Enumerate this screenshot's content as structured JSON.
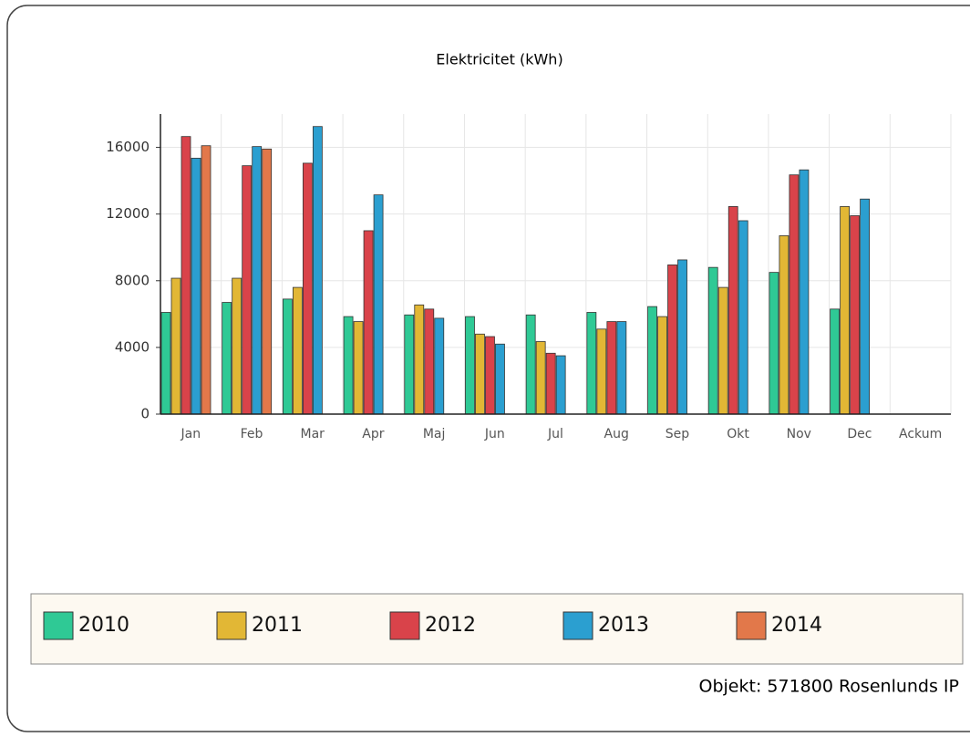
{
  "chart_data": {
    "type": "bar",
    "title": "Elektricitet (kWh)",
    "categories": [
      "Jan",
      "Feb",
      "Mar",
      "Apr",
      "Maj",
      "Jun",
      "Jul",
      "Aug",
      "Sep",
      "Okt",
      "Nov",
      "Dec",
      "Ackum"
    ],
    "series": [
      {
        "name": "2010",
        "color": "#2fc995",
        "values": [
          6100,
          6700,
          6900,
          5850,
          5950,
          5850,
          5950,
          6100,
          6450,
          8800,
          8500,
          6300,
          null
        ]
      },
      {
        "name": "2011",
        "color": "#e2b735",
        "values": [
          8150,
          8150,
          7600,
          5550,
          6550,
          4800,
          4350,
          5100,
          5850,
          7600,
          10700,
          12450,
          null
        ]
      },
      {
        "name": "2012",
        "color": "#d9434a",
        "values": [
          16650,
          14900,
          15050,
          11000,
          6300,
          4650,
          3650,
          5550,
          8950,
          12450,
          14350,
          11900,
          null
        ]
      },
      {
        "name": "2013",
        "color": "#2b9fd0",
        "values": [
          15350,
          16050,
          17250,
          13150,
          5750,
          4200,
          3500,
          5550,
          9250,
          11600,
          14650,
          12900,
          null
        ]
      },
      {
        "name": "2014",
        "color": "#e2784a",
        "values": [
          16100,
          15900,
          null,
          null,
          null,
          null,
          null,
          null,
          null,
          null,
          null,
          null,
          null
        ]
      }
    ],
    "ylim": [
      0,
      18000
    ],
    "yticks": [
      0,
      4000,
      8000,
      12000,
      16000
    ],
    "grid": true,
    "footnote": "Objekt: 571800 Rosenlunds IP"
  }
}
